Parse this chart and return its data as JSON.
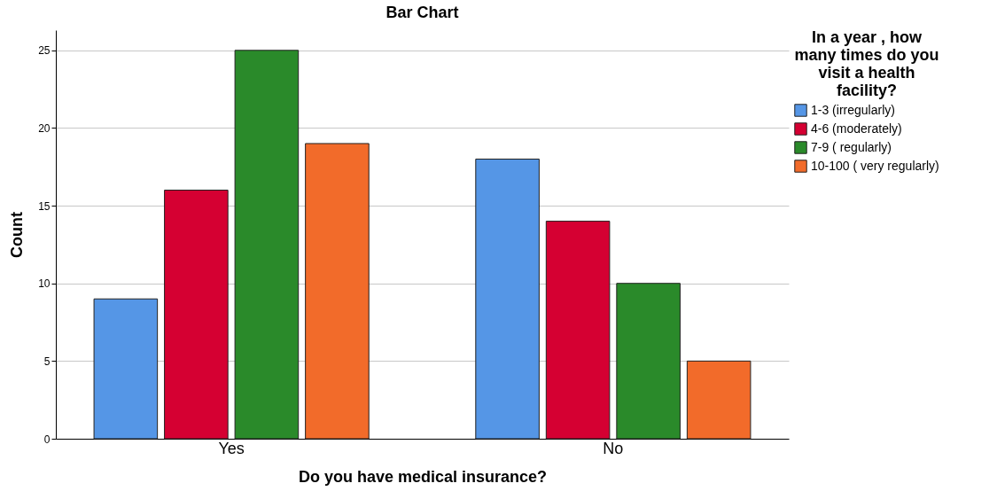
{
  "chart_data": {
    "type": "bar",
    "title": "Bar Chart",
    "xlabel": "Do you have medical insurance?",
    "ylabel": "Count",
    "legend_title": "In a year , how many times do you visit a health facility?",
    "categories": [
      "Yes",
      "No"
    ],
    "series": [
      {
        "name": "1-3 (irregularly)",
        "color": "#5596e6",
        "values": [
          9,
          18
        ]
      },
      {
        "name": "4-6 (moderately)",
        "color": "#d50032",
        "values": [
          16,
          14
        ]
      },
      {
        "name": "7-9 ( regularly)",
        "color": "#2a8a2a",
        "values": [
          25,
          10
        ]
      },
      {
        "name": "10-100 ( very regularly)",
        "color": "#f26b2a",
        "values": [
          19,
          5
        ]
      }
    ],
    "ylim": [
      0,
      26.3
    ],
    "yticks": [
      0,
      5,
      10,
      15,
      20,
      25
    ],
    "grid": "y",
    "legend": "top right"
  }
}
